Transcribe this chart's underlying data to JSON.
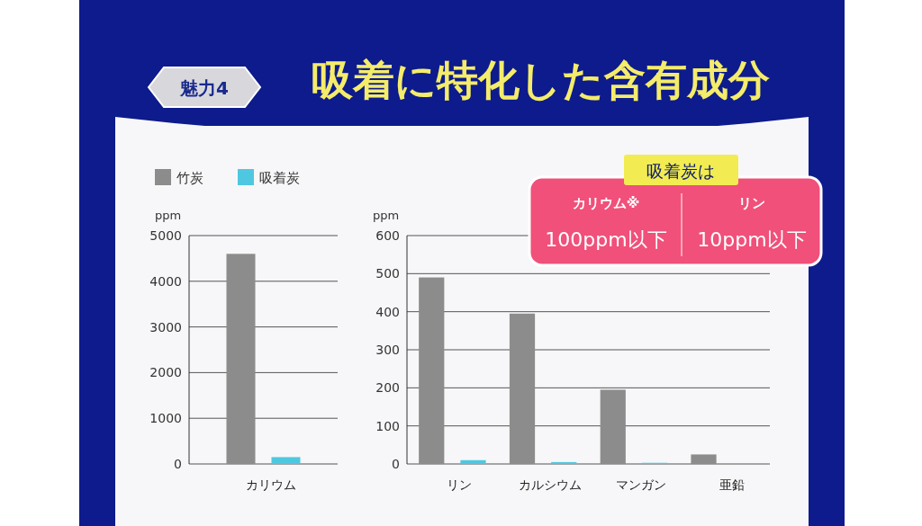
{
  "chart_data": [
    {
      "type": "bar",
      "annotations": [
        "魅力4"
      ],
      "ylabel": "ppm",
      "categories": [
        "カリウム"
      ],
      "series": [
        {
          "name": "竹炭",
          "color": "#8c8c8c",
          "values": [
            4600
          ]
        },
        {
          "name": "吸着炭",
          "color": "#4ec8e0",
          "values": [
            150
          ]
        }
      ],
      "ylim": [
        0,
        5000
      ],
      "yticks": [
        0,
        1000,
        2000,
        3000,
        4000,
        5000
      ],
      "grid": "y",
      "legend": "top left"
    },
    {
      "type": "bar",
      "title": "吸着に特化した含有成分",
      "annotations": [
        "吸着炭は",
        "カリウム※",
        "100ppm以下",
        "リン",
        "10ppm以下"
      ],
      "ylabel": "ppm",
      "categories": [
        "リン",
        "カルシウム",
        "マンガン",
        "亜鉛"
      ],
      "series": [
        {
          "name": "竹炭",
          "color": "#8c8c8c",
          "values": [
            490,
            395,
            195,
            25
          ]
        },
        {
          "name": "吸着炭",
          "color": "#4ec8e0",
          "values": [
            10,
            5,
            3,
            2
          ]
        }
      ],
      "ylim": [
        0,
        600
      ],
      "yticks": [
        0,
        100,
        200,
        300,
        400,
        500,
        600
      ],
      "grid": "y"
    }
  ]
}
